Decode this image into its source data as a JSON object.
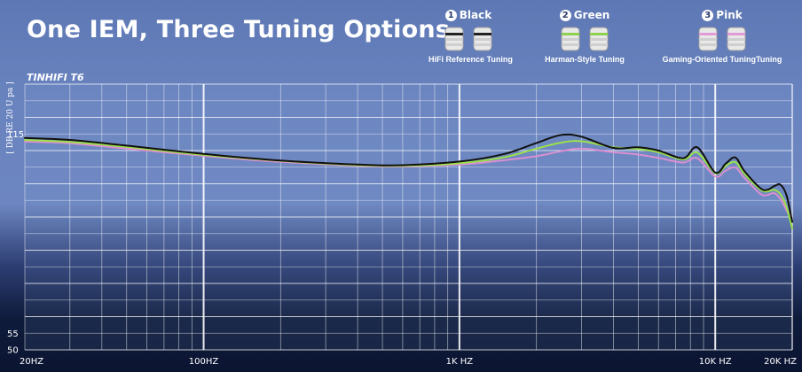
{
  "header": {
    "headline": "One IEM, Three Tuning Options"
  },
  "tips": [
    {
      "number": "1",
      "name": "Black",
      "label": "HiFi Reference Tuning",
      "color": "#111111"
    },
    {
      "number": "2",
      "name": "Green",
      "label": "Harman-Style Tuning",
      "color": "#9be04a"
    },
    {
      "number": "3",
      "name": "Pink",
      "label": "Gaming-Oriented TuningTuning",
      "color": "#d98fd0"
    }
  ],
  "chart_data": {
    "type": "line",
    "title": "TINHIFI T6",
    "ylabel": "[ DB RE 20 U pa ]",
    "x_scale": "log",
    "xlim": [
      20,
      20000
    ],
    "x_ticks": [
      {
        "value": 20,
        "label": "20HZ"
      },
      {
        "value": 100,
        "label": "100HZ"
      },
      {
        "value": 1000,
        "label": "1K HZ"
      },
      {
        "value": 10000,
        "label": "10K HZ"
      },
      {
        "value": 20000,
        "label": "20K HZ"
      }
    ],
    "ylim": [
      50,
      130
    ],
    "y_ticks": [
      {
        "value": 115,
        "label": "115"
      },
      {
        "value": 55,
        "label": "55"
      },
      {
        "value": 50,
        "label": "50"
      }
    ],
    "grid": true,
    "series": [
      {
        "name": "Black",
        "color": "#111111",
        "points": [
          [
            20,
            113.8
          ],
          [
            30,
            113.2
          ],
          [
            50,
            111.5
          ],
          [
            100,
            109.0
          ],
          [
            200,
            107.0
          ],
          [
            400,
            105.8
          ],
          [
            600,
            105.6
          ],
          [
            1000,
            106.7
          ],
          [
            1500,
            109.0
          ],
          [
            2000,
            112.3
          ],
          [
            2500,
            114.7
          ],
          [
            3000,
            114.2
          ],
          [
            4000,
            110.8
          ],
          [
            5000,
            111.0
          ],
          [
            6000,
            110.0
          ],
          [
            7500,
            107.7
          ],
          [
            8500,
            111.0
          ],
          [
            10000,
            103.4
          ],
          [
            11000,
            106.1
          ],
          [
            12000,
            107.9
          ],
          [
            13000,
            103.8
          ],
          [
            15000,
            98.7
          ],
          [
            16000,
            98.2
          ],
          [
            17000,
            99.3
          ],
          [
            18000,
            99.7
          ],
          [
            19000,
            96.5
          ],
          [
            20000,
            88.5
          ]
        ]
      },
      {
        "name": "Green",
        "color": "#9be04a",
        "points": [
          [
            20,
            113.2
          ],
          [
            30,
            112.6
          ],
          [
            50,
            111.1
          ],
          [
            100,
            108.7
          ],
          [
            200,
            106.9
          ],
          [
            400,
            105.6
          ],
          [
            600,
            105.4
          ],
          [
            1000,
            106.2
          ],
          [
            1500,
            108.0
          ],
          [
            2000,
            110.6
          ],
          [
            2500,
            112.4
          ],
          [
            3000,
            112.8
          ],
          [
            4000,
            111.0
          ],
          [
            5000,
            110.5
          ],
          [
            6000,
            109.5
          ],
          [
            7500,
            107.3
          ],
          [
            8500,
            109.4
          ],
          [
            10000,
            103.2
          ],
          [
            11000,
            105.4
          ],
          [
            12000,
            106.5
          ],
          [
            13000,
            103.0
          ],
          [
            15000,
            98.3
          ],
          [
            16000,
            97.7
          ],
          [
            17000,
            98.2
          ],
          [
            18000,
            96.8
          ],
          [
            19000,
            93.0
          ],
          [
            20000,
            86.5
          ]
        ]
      },
      {
        "name": "Pink",
        "color": "#d98fd0",
        "points": [
          [
            20,
            112.7
          ],
          [
            30,
            112.2
          ],
          [
            50,
            110.6
          ],
          [
            100,
            108.4
          ],
          [
            200,
            106.6
          ],
          [
            400,
            105.4
          ],
          [
            600,
            105.2
          ],
          [
            1000,
            105.8
          ],
          [
            1500,
            107.1
          ],
          [
            2000,
            108.3
          ],
          [
            2500,
            109.8
          ],
          [
            3000,
            110.6
          ],
          [
            4000,
            109.5
          ],
          [
            5000,
            108.8
          ],
          [
            6000,
            107.8
          ],
          [
            7500,
            106.4
          ],
          [
            8500,
            107.7
          ],
          [
            10000,
            102.2
          ],
          [
            11000,
            104.0
          ],
          [
            12000,
            104.9
          ],
          [
            13000,
            101.8
          ],
          [
            15000,
            97.0
          ],
          [
            16000,
            96.6
          ],
          [
            17000,
            97.2
          ],
          [
            18000,
            95.4
          ],
          [
            19000,
            92.0
          ],
          [
            20000,
            88.5
          ]
        ]
      }
    ]
  }
}
